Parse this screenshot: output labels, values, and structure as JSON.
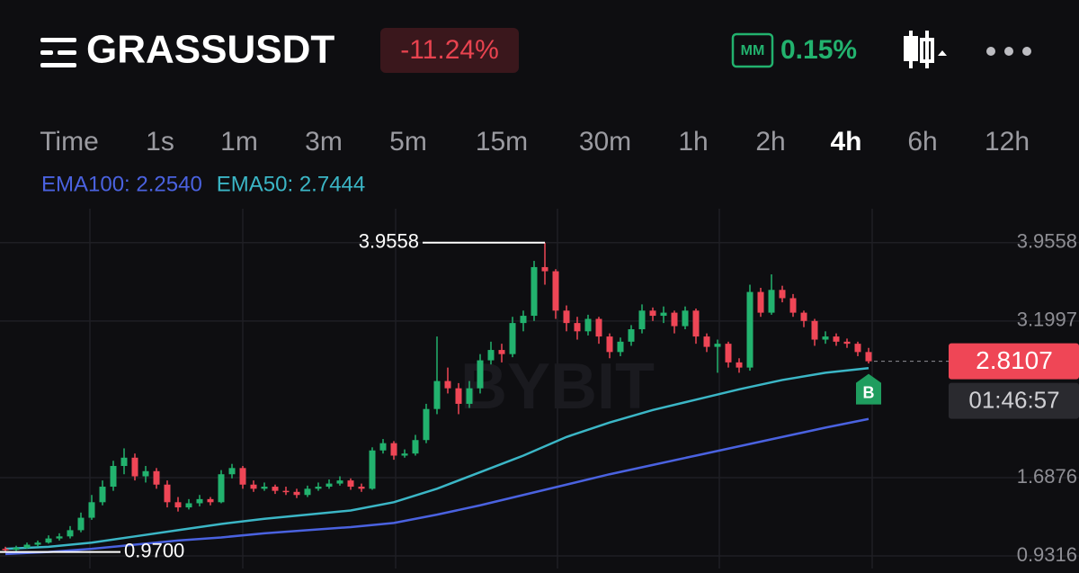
{
  "header": {
    "symbol": "GRASSUSDT",
    "change": "-11.24%",
    "mm_badge": "MM",
    "mm_value": "0.15%"
  },
  "timeframes": {
    "items": [
      "Time",
      "1s",
      "1m",
      "3m",
      "5m",
      "15m",
      "30m",
      "1h",
      "2h",
      "4h",
      "6h",
      "12h"
    ],
    "active": 9
  },
  "indicators": [
    {
      "label": "EMA100: 2.2540",
      "color": "#4a62e0",
      "x": [
        0,
        4,
        8,
        12,
        16,
        20,
        24,
        28,
        32,
        36,
        40,
        44,
        48,
        52,
        56,
        60,
        64,
        68,
        72,
        76,
        80
      ],
      "values": [
        0.95,
        0.97,
        1.0,
        1.04,
        1.08,
        1.11,
        1.15,
        1.18,
        1.21,
        1.25,
        1.33,
        1.42,
        1.52,
        1.62,
        1.72,
        1.81,
        1.9,
        1.99,
        2.08,
        2.17,
        2.254
      ]
    },
    {
      "label": "EMA50: 2.7444",
      "color": "#3bb6c6",
      "x": [
        0,
        4,
        8,
        12,
        16,
        20,
        24,
        28,
        32,
        36,
        40,
        44,
        48,
        52,
        56,
        60,
        64,
        68,
        72,
        76,
        80
      ],
      "values": [
        1.0,
        1.02,
        1.06,
        1.12,
        1.18,
        1.24,
        1.29,
        1.33,
        1.37,
        1.45,
        1.58,
        1.74,
        1.9,
        2.08,
        2.22,
        2.34,
        2.44,
        2.54,
        2.63,
        2.7,
        2.7444
      ]
    }
  ],
  "chart": {
    "type": "candlestick",
    "ylim": [
      0.81,
      4.284
    ],
    "yticks": [
      3.9558,
      3.1997,
      1.6876,
      0.9316
    ],
    "up_color": "#22b26e",
    "down_color": "#ef4656",
    "high_marker": 3.9558,
    "low_marker": {
      "value": 0.97,
      "label": "0.9700"
    },
    "last_price": 2.8107,
    "countdown": "01:46:57",
    "signal": "B",
    "watermark": "BYBIT",
    "candles": [
      [
        1.0,
        1.02,
        0.97,
        0.99
      ],
      [
        0.99,
        1.03,
        0.98,
        1.01
      ],
      [
        1.01,
        1.06,
        1.0,
        1.04
      ],
      [
        1.04,
        1.08,
        1.02,
        1.06
      ],
      [
        1.06,
        1.13,
        1.05,
        1.1
      ],
      [
        1.1,
        1.15,
        1.08,
        1.12
      ],
      [
        1.12,
        1.22,
        1.1,
        1.18
      ],
      [
        1.18,
        1.35,
        1.16,
        1.3
      ],
      [
        1.3,
        1.52,
        1.28,
        1.45
      ],
      [
        1.45,
        1.66,
        1.42,
        1.6
      ],
      [
        1.6,
        1.85,
        1.56,
        1.8
      ],
      [
        1.8,
        1.97,
        1.72,
        1.88
      ],
      [
        1.88,
        1.92,
        1.66,
        1.7
      ],
      [
        1.7,
        1.8,
        1.64,
        1.75
      ],
      [
        1.75,
        1.78,
        1.58,
        1.62
      ],
      [
        1.62,
        1.66,
        1.4,
        1.45
      ],
      [
        1.45,
        1.5,
        1.36,
        1.4
      ],
      [
        1.4,
        1.48,
        1.38,
        1.44
      ],
      [
        1.44,
        1.52,
        1.41,
        1.48
      ],
      [
        1.48,
        1.5,
        1.42,
        1.45
      ],
      [
        1.45,
        1.76,
        1.44,
        1.72
      ],
      [
        1.72,
        1.82,
        1.68,
        1.78
      ],
      [
        1.78,
        1.8,
        1.58,
        1.62
      ],
      [
        1.62,
        1.66,
        1.55,
        1.58
      ],
      [
        1.58,
        1.64,
        1.56,
        1.6
      ],
      [
        1.6,
        1.62,
        1.53,
        1.56
      ],
      [
        1.56,
        1.6,
        1.52,
        1.55
      ],
      [
        1.55,
        1.58,
        1.49,
        1.52
      ],
      [
        1.52,
        1.61,
        1.5,
        1.58
      ],
      [
        1.58,
        1.64,
        1.56,
        1.6
      ],
      [
        1.6,
        1.67,
        1.58,
        1.63
      ],
      [
        1.63,
        1.7,
        1.61,
        1.66
      ],
      [
        1.66,
        1.68,
        1.57,
        1.6
      ],
      [
        1.6,
        1.63,
        1.55,
        1.58
      ],
      [
        1.58,
        1.98,
        1.57,
        1.95
      ],
      [
        1.95,
        2.06,
        1.92,
        2.02
      ],
      [
        2.02,
        2.04,
        1.86,
        1.9
      ],
      [
        1.9,
        1.96,
        1.88,
        1.92
      ],
      [
        1.92,
        2.1,
        1.9,
        2.05
      ],
      [
        2.05,
        2.4,
        2.02,
        2.35
      ],
      [
        2.35,
        3.05,
        2.3,
        2.62
      ],
      [
        2.62,
        2.75,
        2.5,
        2.55
      ],
      [
        2.55,
        2.6,
        2.3,
        2.4
      ],
      [
        2.4,
        2.62,
        2.36,
        2.55
      ],
      [
        2.55,
        2.88,
        2.5,
        2.82
      ],
      [
        2.82,
        3.0,
        2.78,
        2.92
      ],
      [
        2.92,
        2.98,
        2.8,
        2.88
      ],
      [
        2.88,
        3.24,
        2.85,
        3.18
      ],
      [
        3.18,
        3.3,
        3.1,
        3.25
      ],
      [
        3.25,
        3.78,
        3.2,
        3.72
      ],
      [
        3.72,
        3.9558,
        3.55,
        3.68
      ],
      [
        3.68,
        3.7,
        3.22,
        3.3
      ],
      [
        3.3,
        3.35,
        3.1,
        3.18
      ],
      [
        3.18,
        3.24,
        3.02,
        3.1
      ],
      [
        3.1,
        3.26,
        3.06,
        3.22
      ],
      [
        3.22,
        3.24,
        2.98,
        3.05
      ],
      [
        3.05,
        3.08,
        2.84,
        2.9
      ],
      [
        2.9,
        3.04,
        2.86,
        3.0
      ],
      [
        3.0,
        3.16,
        2.96,
        3.12
      ],
      [
        3.12,
        3.36,
        3.08,
        3.3
      ],
      [
        3.3,
        3.33,
        3.2,
        3.25
      ],
      [
        3.25,
        3.34,
        3.18,
        3.28
      ],
      [
        3.28,
        3.3,
        3.08,
        3.15
      ],
      [
        3.15,
        3.34,
        3.12,
        3.3
      ],
      [
        3.3,
        3.32,
        2.98,
        3.05
      ],
      [
        3.05,
        3.08,
        2.9,
        2.95
      ],
      [
        2.95,
        3.02,
        2.7,
        2.98
      ],
      [
        2.98,
        3.0,
        2.75,
        2.8
      ],
      [
        2.8,
        2.84,
        2.7,
        2.75
      ],
      [
        2.75,
        3.55,
        2.72,
        3.48
      ],
      [
        3.48,
        3.52,
        3.24,
        3.28
      ],
      [
        3.28,
        3.65,
        3.26,
        3.5
      ],
      [
        3.5,
        3.54,
        3.38,
        3.42
      ],
      [
        3.42,
        3.46,
        3.24,
        3.28
      ],
      [
        3.28,
        3.3,
        3.14,
        3.2
      ],
      [
        3.2,
        3.22,
        2.96,
        3.02
      ],
      [
        3.02,
        3.1,
        2.98,
        3.05
      ],
      [
        3.05,
        3.08,
        2.96,
        3.0
      ],
      [
        3.0,
        3.03,
        2.94,
        2.98
      ],
      [
        2.98,
        3.0,
        2.86,
        2.9
      ],
      [
        2.9,
        2.94,
        2.79,
        2.8107
      ]
    ]
  }
}
